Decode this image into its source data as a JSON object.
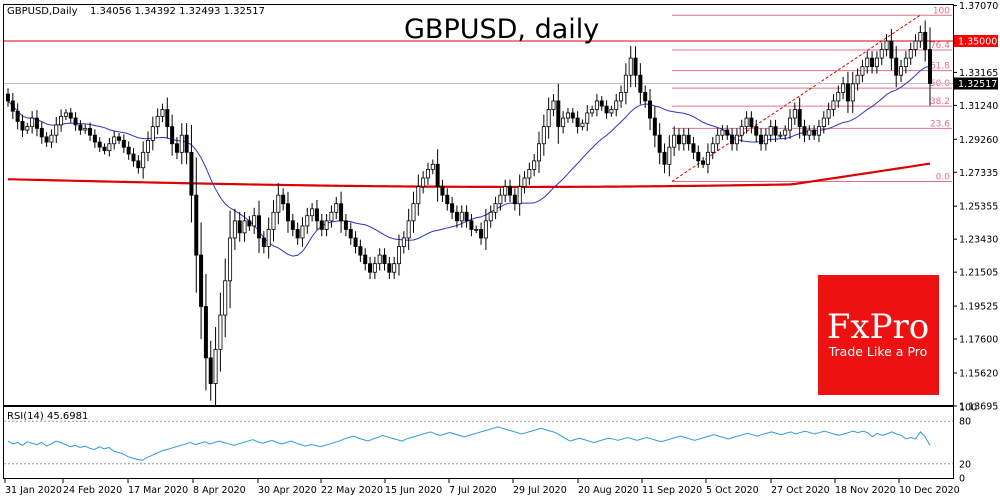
{
  "header": {
    "symbol": "GBPUSD,Daily",
    "ohlc": "1.34056 1.34392 1.32493 1.32517"
  },
  "title": "GBPUSD, daily",
  "logo": {
    "main": "FxPro",
    "tagline": "Trade Like a Pro"
  },
  "colors": {
    "candle": "#000000",
    "ma_short": "#2b35c8",
    "ma_long": "#dd0000",
    "resistance": "#dd0000",
    "fib": "#e0708a",
    "price_tag": "#000000",
    "level_tag": "#ff0000",
    "rsi": "#2e9be3",
    "logo_bg": "#ee1111"
  },
  "chart_data": [
    {
      "type": "candlestick",
      "title": "GBPUSD, daily",
      "ylim": [
        1.1375,
        1.371
      ],
      "y_ticks": [
        "1.37070",
        "1.35000",
        "1.33165",
        "1.32517",
        "1.31240",
        "1.29260",
        "1.27335",
        "1.25355",
        "1.23430",
        "1.21505",
        "1.19525",
        "1.17600",
        "1.15620",
        "1.13695"
      ],
      "x_ticks": [
        "31 Jan 2020",
        "24 Feb 2020",
        "17 Mar 2020",
        "8 Apr 2020",
        "30 Apr 2020",
        "22 May 2020",
        "15 Jun 2020",
        "7 Jul 2020",
        "29 Jul 2020",
        "20 Aug 2020",
        "11 Sep 2020",
        "5 Oct 2020",
        "27 Oct 2020",
        "18 Nov 2020",
        "10 Dec 2020"
      ],
      "last_price": {
        "value": 1.32517,
        "label": "1.32517"
      },
      "resistance": {
        "value": 1.35,
        "label": "1.35000"
      },
      "closes": [
        1.315,
        1.309,
        1.303,
        1.298,
        1.3,
        1.305,
        1.299,
        1.294,
        1.291,
        1.295,
        1.301,
        1.306,
        1.308,
        1.305,
        1.301,
        1.298,
        1.299,
        1.295,
        1.291,
        1.288,
        1.286,
        1.29,
        1.294,
        1.292,
        1.288,
        1.284,
        1.28,
        1.276,
        1.285,
        1.292,
        1.3,
        1.306,
        1.31,
        1.3,
        1.29,
        1.285,
        1.295,
        1.285,
        1.26,
        1.225,
        1.195,
        1.165,
        1.15,
        1.17,
        1.19,
        1.21,
        1.235,
        1.245,
        1.238,
        1.245,
        1.242,
        1.248,
        1.235,
        1.23,
        1.24,
        1.25,
        1.26,
        1.255,
        1.245,
        1.24,
        1.235,
        1.242,
        1.248,
        1.252,
        1.245,
        1.24,
        1.245,
        1.25,
        1.255,
        1.245,
        1.24,
        1.235,
        1.23,
        1.225,
        1.22,
        1.215,
        1.22,
        1.225,
        1.22,
        1.215,
        1.22,
        1.23,
        1.235,
        1.245,
        1.255,
        1.265,
        1.27,
        1.275,
        1.278,
        1.265,
        1.26,
        1.255,
        1.25,
        1.245,
        1.25,
        1.245,
        1.24,
        1.24,
        1.235,
        1.245,
        1.25,
        1.255,
        1.26,
        1.265,
        1.26,
        1.255,
        1.265,
        1.27,
        1.275,
        1.28,
        1.29,
        1.3,
        1.31,
        1.315,
        1.3,
        1.305,
        1.308,
        1.305,
        1.3,
        1.302,
        1.308,
        1.31,
        1.315,
        1.312,
        1.308,
        1.31,
        1.315,
        1.32,
        1.33,
        1.34,
        1.33,
        1.32,
        1.315,
        1.305,
        1.295,
        1.285,
        1.278,
        1.288,
        1.295,
        1.29,
        1.295,
        1.29,
        1.285,
        1.28,
        1.278,
        1.285,
        1.29,
        1.295,
        1.298,
        1.295,
        1.29,
        1.295,
        1.3,
        1.305,
        1.3,
        1.295,
        1.29,
        1.295,
        1.3,
        1.295,
        1.295,
        1.298,
        1.305,
        1.31,
        1.3,
        1.295,
        1.298,
        1.295,
        1.3,
        1.305,
        1.31,
        1.315,
        1.32,
        1.325,
        1.315,
        1.325,
        1.33,
        1.335,
        1.34,
        1.335,
        1.34,
        1.345,
        1.35,
        1.34,
        1.33,
        1.335,
        1.34,
        1.345,
        1.35,
        1.355,
        1.345,
        1.3252
      ]
    },
    {
      "type": "line",
      "title": "RSI(14) 45.6981",
      "ylim": [
        0,
        100
      ],
      "y_ticks": [
        "100",
        "80",
        "20",
        "0"
      ],
      "values": [
        52,
        48,
        50,
        46,
        51,
        49,
        47,
        50,
        45,
        48,
        52,
        50,
        47,
        44,
        46,
        43,
        45,
        42,
        40,
        44,
        41,
        43,
        38,
        36,
        34,
        30,
        28,
        26,
        25,
        29,
        32,
        35,
        38,
        40,
        42,
        44,
        46,
        48,
        50,
        47,
        49,
        51,
        48,
        50,
        52,
        50,
        48,
        46,
        48,
        50,
        52,
        54,
        51,
        49,
        51,
        53,
        50,
        48,
        50,
        52,
        49,
        47,
        45,
        47,
        46,
        44,
        46,
        48,
        50,
        52,
        55,
        57,
        59,
        56,
        54,
        52,
        55,
        57,
        60,
        58,
        56,
        54,
        52,
        55,
        57,
        59,
        61,
        63,
        65,
        62,
        60,
        62,
        64,
        62,
        60,
        58,
        60,
        62,
        64,
        66,
        68,
        70,
        72,
        70,
        68,
        66,
        64,
        62,
        64,
        66,
        68,
        70,
        68,
        66,
        64,
        60,
        56,
        52,
        54,
        56,
        54,
        52,
        50,
        52,
        54,
        56,
        55,
        53,
        55,
        57,
        55,
        53,
        55,
        57,
        55,
        53,
        51,
        53,
        55,
        57,
        59,
        57,
        55,
        53,
        55,
        57,
        59,
        61,
        59,
        57,
        55,
        57,
        59,
        61,
        63,
        61,
        59,
        61,
        63,
        65,
        63,
        61,
        63,
        65,
        62,
        64,
        66,
        64,
        62,
        64,
        66,
        64,
        62,
        60,
        62,
        64,
        66,
        64,
        66,
        64,
        58,
        63,
        60,
        62,
        65,
        62,
        60,
        55,
        57,
        55,
        65,
        58,
        46
      ]
    }
  ],
  "fib_levels": [
    {
      "label": "100",
      "value": 1.365
    },
    {
      "label": "76.4",
      "value": 1.3447
    },
    {
      "label": "61.8",
      "value": 1.3327
    },
    {
      "label": "50.0",
      "value": 1.3225
    },
    {
      "label": "38.2",
      "value": 1.312
    },
    {
      "label": "23.6",
      "value": 1.299
    },
    {
      "label": "0.0",
      "value": 1.268
    }
  ]
}
